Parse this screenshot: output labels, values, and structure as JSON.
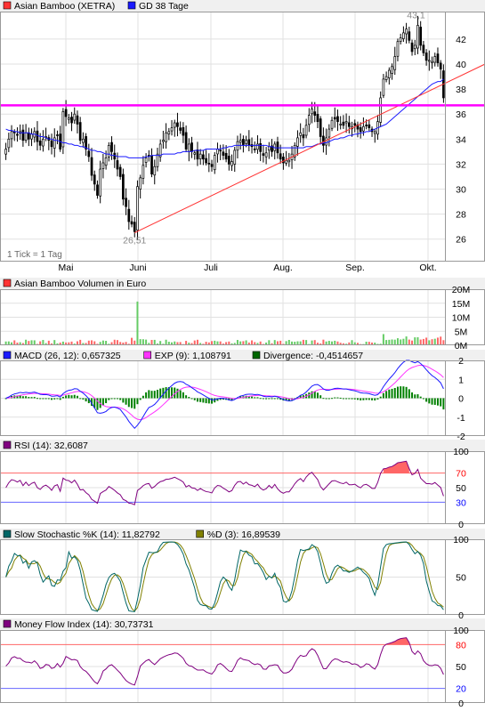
{
  "chart_data": [
    {
      "type": "candlestick",
      "legend": [
        {
          "label": "Asian Bamboo (XETRA)",
          "color": "#ff3333"
        },
        {
          "label": "GD 38 Tage",
          "color": "#1a1aff"
        }
      ],
      "note": "1 Tick = 1 Tag",
      "months": [
        "Mai",
        "Juni",
        "Juli",
        "Aug.",
        "Sep.",
        "Okt."
      ],
      "yticks": [
        26,
        28,
        30,
        32,
        34,
        36,
        38,
        40,
        42
      ],
      "ylim": [
        24.2,
        44.2
      ],
      "annotations": [
        {
          "text": "43,1",
          "value": 43.1
        },
        {
          "text": "26,51",
          "value": 26.51
        }
      ],
      "resistance": 36.7,
      "trendline": {
        "from": 26.51,
        "to": 40.0
      },
      "close": [
        33.2,
        34.0,
        34.6,
        34.5,
        34.3,
        34.6,
        33.9,
        34.5,
        34.0,
        34.4,
        34.6,
        33.8,
        33.5,
        34.0,
        34.2,
        33.9,
        33.4,
        34.1,
        34.3,
        33.2,
        36.2,
        35.8,
        35.7,
        35.3,
        36.0,
        35.2,
        33.9,
        34.0,
        33.2,
        32.6,
        31.1,
        30.4,
        29.5,
        31.6,
        32.1,
        32.5,
        33.5,
        33.0,
        32.4,
        31.6,
        31.0,
        29.2,
        28.6,
        27.4,
        27.2,
        26.6,
        30.2,
        30.9,
        31.9,
        32.5,
        32.7,
        31.2,
        31.8,
        32.8,
        33.6,
        33.9,
        34.5,
        34.6,
        34.9,
        35.3,
        35.0,
        34.7,
        34.3,
        33.2,
        33.6,
        33.0,
        32.9,
        32.4,
        32.8,
        32.4,
        32.1,
        32.0,
        31.8,
        32.7,
        33.2,
        33.1,
        32.7,
        32.4,
        32.0,
        32.2,
        33.1,
        33.8,
        33.9,
        33.5,
        33.9,
        33.5,
        33.4,
        33.2,
        33.6,
        33.0,
        32.7,
        32.9,
        33.4,
        33.0,
        33.6,
        32.9,
        32.4,
        32.1,
        32.3,
        32.3,
        32.8,
        33.5,
        34.1,
        34.5,
        34.1,
        35.1,
        35.9,
        36.4,
        35.9,
        35.4,
        34.2,
        33.5,
        34.1,
        34.8,
        35.5,
        35.6,
        35.4,
        35.2,
        35.1,
        35.4,
        35.0,
        35.0,
        35.1,
        34.8,
        34.6,
        35.0,
        35.1,
        34.9,
        34.6,
        34.6,
        35.4,
        37.3,
        38.8,
        39.0,
        39.5,
        39.8,
        40.6,
        41.8,
        42.1,
        42.5,
        42.8,
        41.9,
        41.0,
        41.5,
        43.1,
        41.5,
        40.9,
        40.3,
        40.3,
        40.2,
        40.6,
        40.1,
        39.6,
        37.3
      ],
      "ma38": [
        34.8,
        34.7,
        34.7,
        34.6,
        34.6,
        34.5,
        34.5,
        34.5,
        34.5,
        34.4,
        34.4,
        34.3,
        34.2,
        34.2,
        34.1,
        34.0,
        34.0,
        33.9,
        33.9,
        33.8,
        33.7,
        33.7,
        33.6,
        33.6,
        33.5,
        33.5,
        33.4,
        33.4,
        33.3,
        33.2,
        33.1,
        33.1,
        33.0,
        33.0,
        32.9,
        32.8,
        32.8,
        32.7,
        32.7,
        32.6,
        32.6,
        32.6,
        32.6,
        32.5,
        32.5,
        32.5,
        32.5,
        32.5,
        32.5,
        32.6,
        32.6,
        32.7,
        32.7,
        32.7,
        32.7,
        32.8,
        32.8,
        32.8,
        32.8,
        32.8,
        32.9,
        32.9,
        33.0,
        33.0,
        33.0,
        33.0,
        33.1,
        33.1,
        33.1,
        33.1,
        33.2,
        33.2,
        33.2,
        33.2,
        33.2,
        33.2,
        33.3,
        33.3,
        33.4,
        33.4,
        33.5,
        33.5,
        33.5,
        33.5,
        33.5,
        33.5,
        33.5,
        33.5,
        33.5,
        33.5,
        33.5,
        33.5,
        33.4,
        33.4,
        33.3,
        33.3,
        33.3,
        33.3,
        33.3,
        33.3,
        33.3,
        33.3,
        33.3,
        33.3,
        33.3,
        33.4,
        33.4,
        33.4,
        33.5,
        33.6,
        33.6,
        33.7,
        33.7,
        33.8,
        33.9,
        34.0,
        34.0,
        34.1,
        34.1,
        34.2,
        34.3,
        34.3,
        34.4,
        34.4,
        34.5,
        34.5,
        34.6,
        34.6,
        34.7,
        34.8,
        34.9,
        35.0,
        35.1,
        35.2,
        35.4,
        35.6,
        35.8,
        36.0,
        36.2,
        36.4,
        36.6,
        36.8,
        37.0,
        37.2,
        37.4,
        37.6,
        37.8,
        38.0,
        38.2,
        38.4,
        38.5,
        38.6,
        38.6,
        38.8
      ]
    },
    {
      "type": "bar",
      "legend": [
        {
          "label": "Asian Bamboo Volumen in Euro",
          "color": "#ff3333"
        }
      ],
      "yticks": [
        "0M",
        "5M",
        "10M",
        "15M",
        "20M"
      ],
      "ylim": [
        0,
        20
      ],
      "peak": 15.6
    },
    {
      "type": "line",
      "legend": [
        {
          "label": "MACD (26, 12): 0,657325",
          "color": "#1a1aff"
        },
        {
          "label": "EXP (9): 1,108791",
          "color": "#ff33ff"
        },
        {
          "label": "Divergence: -0,4514657",
          "color": "#006600"
        }
      ],
      "yticks": [
        "2",
        "1",
        "0",
        "-1",
        "-2"
      ],
      "ylim": [
        -2,
        2
      ],
      "last": {
        "macd": 0.657325,
        "signal": 1.108791,
        "divergence": -0.4514657
      }
    },
    {
      "type": "line",
      "legend": [
        {
          "label": "RSI (14): 32,6087",
          "color": "#800080"
        }
      ],
      "yticks": [
        "100",
        "70",
        "50",
        "30",
        "0"
      ],
      "ylim": [
        0,
        100
      ],
      "bands": [
        70,
        30
      ],
      "last": 32.6087
    },
    {
      "type": "line",
      "legend": [
        {
          "label": "Slow Stochastic %K (14): 11,82792",
          "color": "#006666"
        },
        {
          "label": "%D (3): 16,89539",
          "color": "#808000"
        }
      ],
      "yticks": [
        "100",
        "50",
        "0"
      ],
      "ylim": [
        0,
        100
      ],
      "last": {
        "k": 11.82792,
        "d": 16.89539
      }
    },
    {
      "type": "line",
      "legend": [
        {
          "label": "Money Flow Index (14): 30,73731",
          "color": "#800080"
        }
      ],
      "yticks": [
        "100",
        "80",
        "50",
        "20",
        "0"
      ],
      "ylim": [
        0,
        100
      ],
      "bands": [
        80,
        20
      ],
      "last": 30.73731
    }
  ]
}
